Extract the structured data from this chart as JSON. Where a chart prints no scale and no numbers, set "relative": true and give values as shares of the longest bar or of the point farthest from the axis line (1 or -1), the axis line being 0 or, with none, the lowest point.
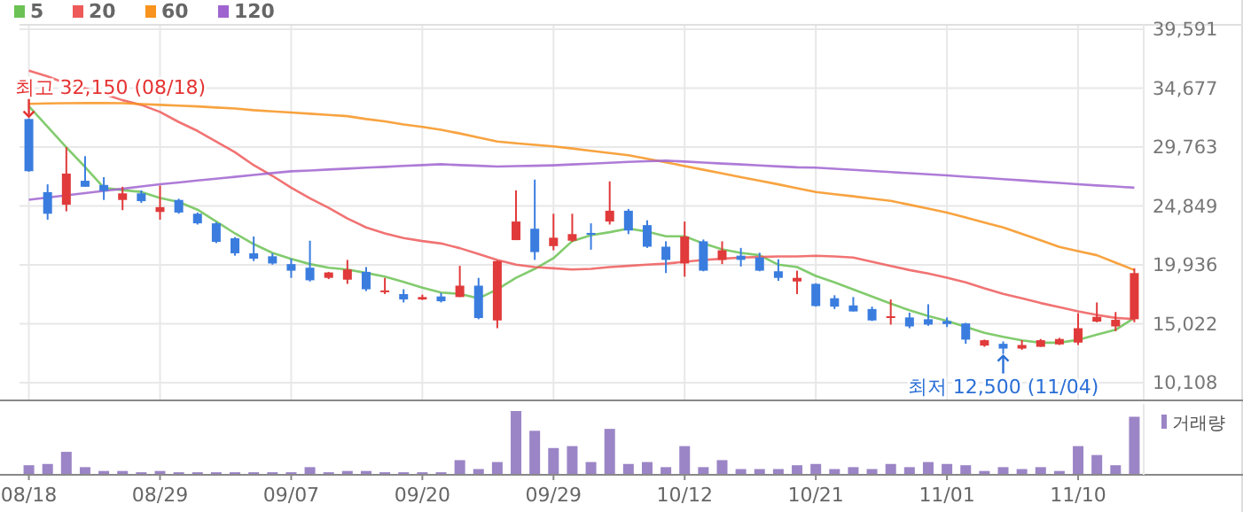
{
  "chart_data": [
    {
      "type": "candlestick",
      "categories": [
        "08/18",
        null,
        null,
        null,
        null,
        null,
        null,
        "08/29",
        null,
        null,
        null,
        null,
        null,
        null,
        "09/07",
        null,
        null,
        null,
        null,
        null,
        null,
        "09/20",
        null,
        null,
        null,
        null,
        null,
        null,
        "09/29",
        null,
        null,
        null,
        null,
        null,
        null,
        "10/12",
        null,
        null,
        null,
        null,
        null,
        null,
        "10/21",
        null,
        null,
        null,
        null,
        null,
        null,
        "11/01",
        null,
        null,
        null,
        null,
        null,
        null,
        "11/10",
        null,
        null,
        null
      ],
      "ohlc": [
        [
          32100,
          32150,
          27700,
          27750
        ],
        [
          26000,
          26650,
          23700,
          24200
        ],
        [
          24950,
          29750,
          24400,
          27550
        ],
        [
          26950,
          29000,
          26450,
          26450
        ],
        [
          26600,
          27250,
          25350,
          26100
        ],
        [
          25350,
          26450,
          24500,
          25900
        ],
        [
          25900,
          26150,
          25100,
          25250
        ],
        [
          24350,
          26550,
          23700,
          24750
        ],
        [
          25350,
          25450,
          24200,
          24300
        ],
        [
          24200,
          24300,
          23300,
          23400
        ],
        [
          23400,
          23500,
          21750,
          21850
        ],
        [
          22150,
          22250,
          20700,
          20900
        ],
        [
          20900,
          22300,
          20250,
          20450
        ],
        [
          20650,
          20900,
          19950,
          20050
        ],
        [
          20000,
          20450,
          18850,
          19450
        ],
        [
          19700,
          21950,
          18550,
          18650
        ],
        [
          18850,
          19350,
          18750,
          19300
        ],
        [
          18700,
          20350,
          18350,
          19550
        ],
        [
          19350,
          19750,
          17750,
          17900
        ],
        [
          17750,
          18850,
          17500,
          17800
        ],
        [
          17500,
          17900,
          16800,
          17050
        ],
        [
          17050,
          17450,
          17000,
          17250
        ],
        [
          17300,
          17600,
          16800,
          16900
        ],
        [
          17250,
          19850,
          17250,
          18200
        ],
        [
          18200,
          18850,
          15400,
          15500
        ],
        [
          15300,
          20300,
          14650,
          20250
        ],
        [
          22000,
          26150,
          22000,
          23550
        ],
        [
          22950,
          27050,
          20350,
          21000
        ],
        [
          21500,
          24200,
          21150,
          22200
        ],
        [
          21950,
          24200,
          21850,
          22500
        ],
        [
          22600,
          23400,
          21200,
          22450
        ],
        [
          23550,
          26900,
          23300,
          24450
        ],
        [
          24450,
          24600,
          22500,
          22800
        ],
        [
          23250,
          23650,
          21350,
          21450
        ],
        [
          21450,
          21900,
          19250,
          20350
        ],
        [
          20050,
          23550,
          18950,
          22300
        ],
        [
          21900,
          22050,
          19400,
          19450
        ],
        [
          20350,
          21900,
          20000,
          21150
        ],
        [
          20700,
          21350,
          19800,
          20350
        ],
        [
          20550,
          20950,
          19400,
          19450
        ],
        [
          19400,
          20400,
          18600,
          18850
        ],
        [
          18550,
          19450,
          17500,
          18850
        ],
        [
          18350,
          18400,
          16450,
          16500
        ],
        [
          17150,
          17400,
          16250,
          16450
        ],
        [
          16550,
          17250,
          16050,
          16050
        ],
        [
          16250,
          16450,
          15250,
          15300
        ],
        [
          15600,
          17050,
          14950,
          15650
        ],
        [
          15550,
          15950,
          14650,
          14800
        ],
        [
          15400,
          16650,
          14850,
          14950
        ],
        [
          15250,
          15550,
          14750,
          15000
        ],
        [
          15050,
          15100,
          13350,
          13700
        ],
        [
          13200,
          13700,
          13100,
          13650
        ],
        [
          13350,
          13550,
          12500,
          12950
        ],
        [
          12950,
          13650,
          12850,
          13250
        ],
        [
          13100,
          13750,
          13100,
          13650
        ],
        [
          13300,
          13850,
          13250,
          13750
        ],
        [
          13450,
          15900,
          13250,
          14650
        ],
        [
          15200,
          16800,
          15150,
          15600
        ],
        [
          14800,
          16000,
          14400,
          15350
        ],
        [
          15400,
          19650,
          15150,
          19250
        ]
      ],
      "colors": [
        "#3a7ddf",
        "#3a7ddf",
        "#e03a3a",
        "#3a7ddf",
        "#3a7ddf",
        "#e03a3a",
        "#3a7ddf",
        "#e03a3a",
        "#3a7ddf",
        "#3a7ddf",
        "#3a7ddf",
        "#3a7ddf",
        "#3a7ddf",
        "#3a7ddf",
        "#3a7ddf",
        "#3a7ddf",
        "#e03a3a",
        "#e03a3a",
        "#3a7ddf",
        "#e03a3a",
        "#3a7ddf",
        "#e03a3a",
        "#3a7ddf",
        "#e03a3a",
        "#3a7ddf",
        "#e03a3a",
        "#e03a3a",
        "#3a7ddf",
        "#e03a3a",
        "#e03a3a",
        "#3a7ddf",
        "#e03a3a",
        "#3a7ddf",
        "#3a7ddf",
        "#3a7ddf",
        "#e03a3a",
        "#3a7ddf",
        "#e03a3a",
        "#3a7ddf",
        "#3a7ddf",
        "#3a7ddf",
        "#e03a3a",
        "#3a7ddf",
        "#3a7ddf",
        "#3a7ddf",
        "#3a7ddf",
        "#e03a3a",
        "#3a7ddf",
        "#3a7ddf",
        "#3a7ddf",
        "#3a7ddf",
        "#e03a3a",
        "#3a7ddf",
        "#e03a3a",
        "#e03a3a",
        "#e03a3a",
        "#e03a3a",
        "#e03a3a",
        "#e03a3a",
        "#e03a3a"
      ],
      "series": [
        {
          "type": "line",
          "name": "5",
          "color": "#6cc255",
          "values": [
            33180,
            31450,
            29730,
            28100,
            26370,
            26170,
            26020,
            25520,
            25180,
            24540,
            23550,
            22560,
            21670,
            20930,
            20440,
            20000,
            19700,
            19550,
            19260,
            18960,
            18520,
            18030,
            17630,
            17520,
            17140,
            17890,
            18860,
            19600,
            20490,
            21920,
            22410,
            22660,
            22960,
            22710,
            22320,
            22320,
            21720,
            21230,
            20930,
            20740,
            19950,
            19750,
            19010,
            18470,
            17890,
            17290,
            16700,
            16150,
            15660,
            15260,
            14770,
            14270,
            13930,
            13630,
            13440,
            13440,
            13680,
            14120,
            14520,
            15510
          ]
        },
        {
          "type": "line",
          "name": "20",
          "color": "#ee5a5a",
          "values": [
            36140,
            35650,
            35060,
            34660,
            34170,
            33670,
            33280,
            32690,
            31850,
            31110,
            30220,
            29330,
            28250,
            27360,
            26370,
            25480,
            24690,
            23800,
            23060,
            22560,
            22170,
            21920,
            21720,
            21330,
            20840,
            20340,
            19950,
            19750,
            19650,
            19550,
            19600,
            19750,
            19850,
            19950,
            20040,
            20190,
            20340,
            20440,
            20540,
            20590,
            20640,
            20640,
            20690,
            20640,
            20540,
            20190,
            19850,
            19500,
            19210,
            18860,
            18470,
            17970,
            17520,
            17140,
            16750,
            16400,
            16060,
            15760,
            15510,
            15410
          ]
        },
        {
          "type": "line",
          "name": "60",
          "color": "#f7931e",
          "values": [
            33370,
            33400,
            33420,
            33430,
            33430,
            33420,
            33350,
            33280,
            33220,
            33150,
            33060,
            32980,
            32840,
            32740,
            32640,
            32540,
            32440,
            32340,
            32100,
            31900,
            31650,
            31450,
            31200,
            30900,
            30550,
            30220,
            30080,
            29950,
            29820,
            29640,
            29450,
            29260,
            29080,
            28780,
            28490,
            28180,
            27870,
            27560,
            27250,
            26950,
            26650,
            26330,
            26010,
            25830,
            25650,
            25460,
            25280,
            24950,
            24620,
            24290,
            23880,
            23470,
            23060,
            22520,
            21980,
            21430,
            21080,
            20740,
            20120,
            19500
          ]
        },
        {
          "type": "line",
          "name": "120",
          "color": "#a064d0",
          "values": [
            25370,
            25550,
            25730,
            25920,
            26100,
            26280,
            26470,
            26660,
            26810,
            26970,
            27120,
            27280,
            27430,
            27590,
            27740,
            27810,
            27890,
            27960,
            28040,
            28110,
            28190,
            28260,
            28330,
            28260,
            28200,
            28140,
            28170,
            28200,
            28240,
            28310,
            28380,
            28450,
            28520,
            28580,
            28630,
            28550,
            28470,
            28390,
            28310,
            28230,
            28150,
            28070,
            28040,
            27950,
            27860,
            27770,
            27670,
            27580,
            27490,
            27400,
            27290,
            27190,
            27080,
            26980,
            26870,
            26770,
            26660,
            26560,
            26470,
            26370
          ]
        }
      ],
      "ylim": [
        8630,
        39960
      ],
      "yticks": [
        {
          "value": 10108,
          "label": "10,108"
        },
        {
          "value": 15022,
          "label": "15,022"
        },
        {
          "value": 19936,
          "label": "19,936"
        },
        {
          "value": 24849,
          "label": "24,849"
        },
        {
          "value": 29763,
          "label": "29,763"
        },
        {
          "value": 34677,
          "label": "34,677"
        },
        {
          "value": 39591,
          "label": "39,591"
        }
      ],
      "grid": true,
      "legend": "top left",
      "tick_labels": "y",
      "annotations": [
        {
          "text": "최고 32,150 (08/18)",
          "x": "08/18",
          "y": 32150
        },
        "최저 12,500 (11/04)"
      ]
    },
    {
      "type": "bar",
      "relative": true,
      "categories": [
        "08/18",
        null,
        null,
        null,
        null,
        null,
        null,
        "08/29",
        null,
        null,
        null,
        null,
        null,
        null,
        "09/07",
        null,
        null,
        null,
        null,
        null,
        null,
        "09/20",
        null,
        null,
        null,
        null,
        null,
        null,
        "09/29",
        null,
        null,
        null,
        null,
        null,
        null,
        "10/12",
        null,
        null,
        null,
        null,
        null,
        null,
        "10/21",
        null,
        null,
        null,
        null,
        null,
        null,
        "11/01",
        null,
        null,
        null,
        null,
        null,
        null,
        "11/10",
        null,
        null,
        null
      ],
      "series": [
        {
          "name": "거래량",
          "color": "#9b85c6",
          "values": [
            0.15,
            0.17,
            0.36,
            0.12,
            0.06,
            0.06,
            0.04,
            0.06,
            0.04,
            0.04,
            0.04,
            0.04,
            0.04,
            0.04,
            0.04,
            0.12,
            0.04,
            0.06,
            0.06,
            0.04,
            0.04,
            0.04,
            0.04,
            0.23,
            0.09,
            0.2,
            1,
            0.69,
            0.42,
            0.45,
            0.2,
            0.72,
            0.17,
            0.2,
            0.12,
            0.45,
            0.12,
            0.23,
            0.09,
            0.09,
            0.09,
            0.15,
            0.17,
            0.09,
            0.12,
            0.09,
            0.17,
            0.12,
            0.2,
            0.17,
            0.15,
            0.06,
            0.12,
            0.09,
            0.12,
            0.06,
            0.45,
            0.31,
            0.15,
            0.91
          ]
        }
      ],
      "legend": "top right",
      "tick_labels": "x"
    }
  ]
}
